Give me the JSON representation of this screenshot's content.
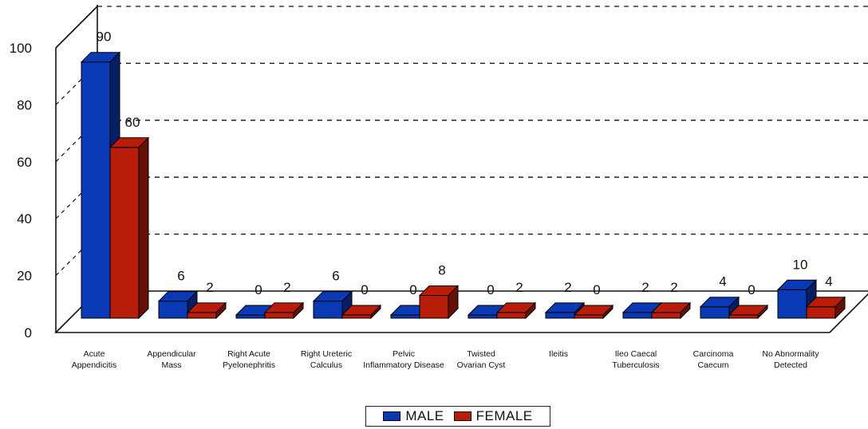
{
  "chart_data": {
    "type": "bar",
    "categories": [
      [
        "Acute",
        "Appendicitis"
      ],
      [
        "Appendicular",
        "Mass"
      ],
      [
        "Right Acute",
        "Pyelonephritis"
      ],
      [
        "Right Ureteric",
        "Calculus"
      ],
      [
        "Pelvic",
        "Inflammatory Disease"
      ],
      [
        "Twisted",
        "Ovarian Cyst"
      ],
      [
        "Ileitis"
      ],
      [
        "Ileo Caecal",
        "Tuberculosis"
      ],
      [
        "Carcinoma",
        "Caecum"
      ],
      [
        "No Abnormality",
        "Detected"
      ]
    ],
    "series": [
      {
        "name": "MALE",
        "color": "#0a39b5",
        "values": [
          90,
          6,
          0,
          6,
          0,
          0,
          2,
          2,
          4,
          10
        ]
      },
      {
        "name": "FEMALE",
        "color": "#b81d0a",
        "values": [
          60,
          2,
          2,
          0,
          8,
          2,
          0,
          2,
          0,
          4
        ]
      }
    ],
    "ylim": [
      0,
      100
    ],
    "yticks": [
      0,
      20,
      40,
      60,
      80,
      100
    ],
    "grid": true,
    "legend": "bottom-center",
    "title": "",
    "xlabel": "",
    "ylabel": ""
  }
}
